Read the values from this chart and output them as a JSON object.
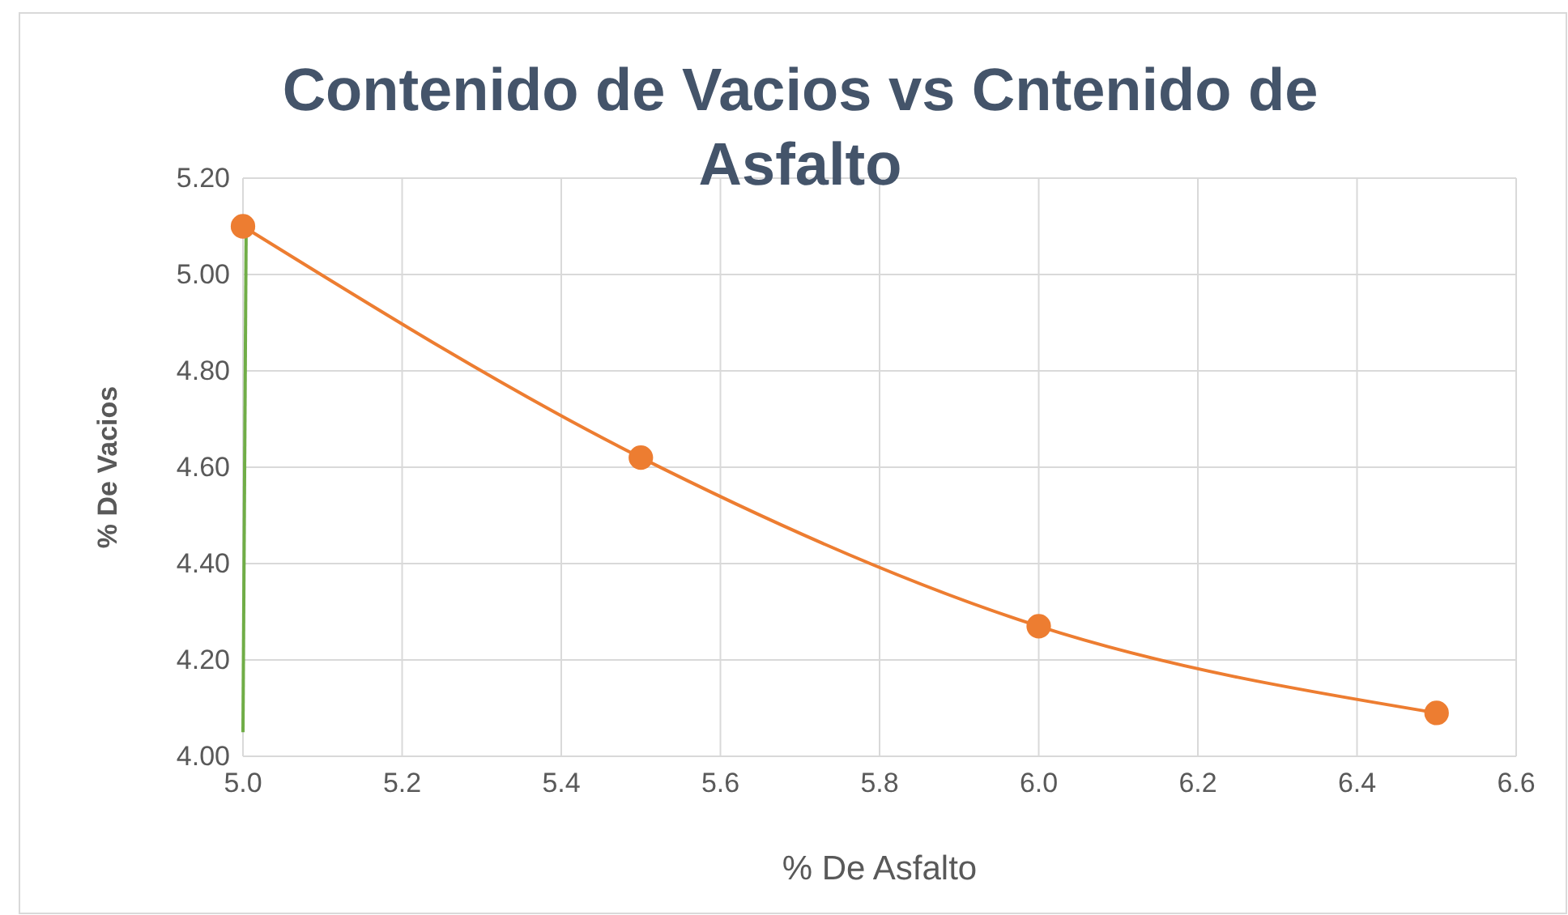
{
  "chart_data": {
    "type": "line",
    "title": "Contenido de Vacios vs Cntenido de Asfalto",
    "xlabel": "% De Asfalto",
    "ylabel": "% De Vacios",
    "xlim": [
      5.0,
      6.6
    ],
    "xticks": [
      {
        "value": 5.0,
        "label": "5.0"
      },
      {
        "value": 5.2,
        "label": "5.2"
      },
      {
        "value": 5.4,
        "label": "5.4"
      },
      {
        "value": 5.6,
        "label": "5.6"
      },
      {
        "value": 5.8,
        "label": "5.8"
      },
      {
        "value": 6.0,
        "label": "6.0"
      },
      {
        "value": 6.2,
        "label": "6.2"
      },
      {
        "value": 6.4,
        "label": "6.4"
      },
      {
        "value": 6.6,
        "label": "6.6"
      }
    ],
    "ylim": [
      4.0,
      5.2
    ],
    "yticks": [
      {
        "value": 4.0,
        "label": "4.00"
      },
      {
        "value": 4.2,
        "label": "4.20"
      },
      {
        "value": 4.4,
        "label": "4.40"
      },
      {
        "value": 4.6,
        "label": "4.60"
      },
      {
        "value": 4.8,
        "label": "4.80"
      },
      {
        "value": 5.0,
        "label": "5.00"
      },
      {
        "value": 5.2,
        "label": "5.20"
      }
    ],
    "grid": true,
    "series": [
      {
        "color": "#70ad47",
        "x": [
          5.004,
          5.0
        ],
        "values": [
          5.1,
          4.05
        ],
        "marker": "none"
      },
      {
        "color": "#ed7d31",
        "x": [
          5.0,
          5.5,
          6.0,
          6.5
        ],
        "values": [
          5.1,
          4.62,
          4.27,
          4.09
        ],
        "marker": "circle"
      }
    ]
  }
}
